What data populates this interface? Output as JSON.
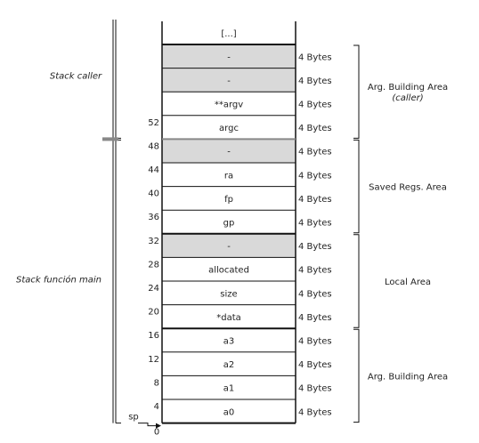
{
  "rows": [
    {
      "label": "[...]",
      "offset": "",
      "bytes": "",
      "shaded": false
    },
    {
      "label": "-",
      "offset": "",
      "bytes": "4 Bytes",
      "shaded": true
    },
    {
      "label": "-",
      "offset": "",
      "bytes": "4 Bytes",
      "shaded": true
    },
    {
      "label": "**argv",
      "offset": "",
      "bytes": "4 Bytes",
      "shaded": false
    },
    {
      "label": "argc",
      "offset": "52",
      "bytes": "4 Bytes",
      "shaded": false
    },
    {
      "label": "-",
      "offset": "48",
      "bytes": "4 Bytes",
      "shaded": true
    },
    {
      "label": "ra",
      "offset": "44",
      "bytes": "4 Bytes",
      "shaded": false
    },
    {
      "label": "fp",
      "offset": "40",
      "bytes": "4 Bytes",
      "shaded": false
    },
    {
      "label": "gp",
      "offset": "36",
      "bytes": "4 Bytes",
      "shaded": false
    },
    {
      "label": "-",
      "offset": "32",
      "bytes": "4 Bytes",
      "shaded": true
    },
    {
      "label": "allocated",
      "offset": "28",
      "bytes": "4 Bytes",
      "shaded": false
    },
    {
      "label": "size",
      "offset": "24",
      "bytes": "4 Bytes",
      "shaded": false
    },
    {
      "label": "*data",
      "offset": "20",
      "bytes": "4 Bytes",
      "shaded": false
    },
    {
      "label": "a3",
      "offset": "16",
      "bytes": "4 Bytes",
      "shaded": false
    },
    {
      "label": "a2",
      "offset": "12",
      "bytes": "4 Bytes",
      "shaded": false
    },
    {
      "label": "a1",
      "offset": "8",
      "bytes": "4 Bytes",
      "shaded": false
    },
    {
      "label": "a0",
      "offset": "4",
      "bytes": "4 Bytes",
      "shaded": false
    }
  ],
  "bottom_offset": "0",
  "sp_label": "sp",
  "areas": [
    {
      "lines": [
        "Arg. Building Area",
        "(caller)"
      ],
      "italic_line": 1,
      "from": 1,
      "to": 4
    },
    {
      "lines": [
        "Saved Regs. Area"
      ],
      "italic_line": -1,
      "from": 5,
      "to": 8
    },
    {
      "lines": [
        "Local Area"
      ],
      "italic_line": -1,
      "from": 9,
      "to": 12
    },
    {
      "lines": [
        "Arg. Building Area"
      ],
      "italic_line": -1,
      "from": 13,
      "to": 16
    }
  ],
  "frames": [
    {
      "label": "Stack caller",
      "from": 0,
      "to": 4
    },
    {
      "label": "Stack función main",
      "from": 5,
      "to": 16
    }
  ],
  "colors": {
    "shaded": "#d9d9d9",
    "line": "#111111",
    "divider": "#888888"
  }
}
